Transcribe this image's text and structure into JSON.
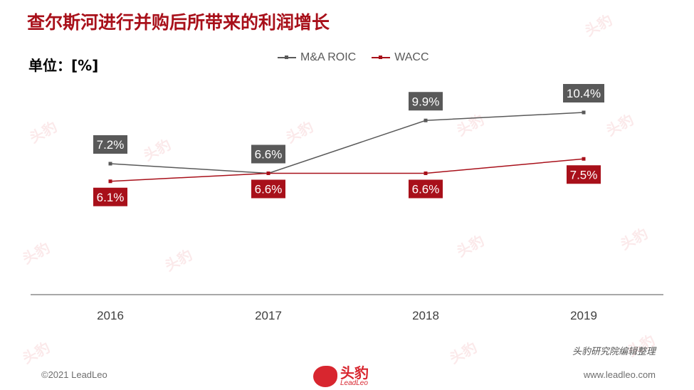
{
  "title": "查尔斯河进行并购后所带来的利润增长",
  "unit_label": "单位：[%]",
  "source_note": "头豹研究院编辑整理",
  "footer": {
    "copyright": "©2021 LeadLeo",
    "website": "www.leadleo.com"
  },
  "logo": {
    "text_cn": "头豹",
    "text_en": "LeadLeo"
  },
  "watermark_text": "头豹",
  "colors": {
    "title": "#a8101a",
    "roic": "#595959",
    "wacc": "#a8101a",
    "axis": "#8c8c8c"
  },
  "chart_data": {
    "type": "line",
    "categories": [
      "2016",
      "2017",
      "2018",
      "2019"
    ],
    "series": [
      {
        "name": "M&A ROIC",
        "values": [
          7.2,
          6.6,
          9.9,
          10.4
        ],
        "labels": [
          "7.2%",
          "6.6%",
          "9.9%",
          "10.4%"
        ],
        "color": "#595959"
      },
      {
        "name": "WACC",
        "values": [
          6.1,
          6.6,
          6.6,
          7.5
        ],
        "labels": [
          "6.1%",
          "6.6%",
          "6.6%",
          "7.5%"
        ],
        "color": "#a8101a"
      }
    ],
    "xlabel": "",
    "ylabel": "",
    "grid": false,
    "legend": "top-center"
  }
}
